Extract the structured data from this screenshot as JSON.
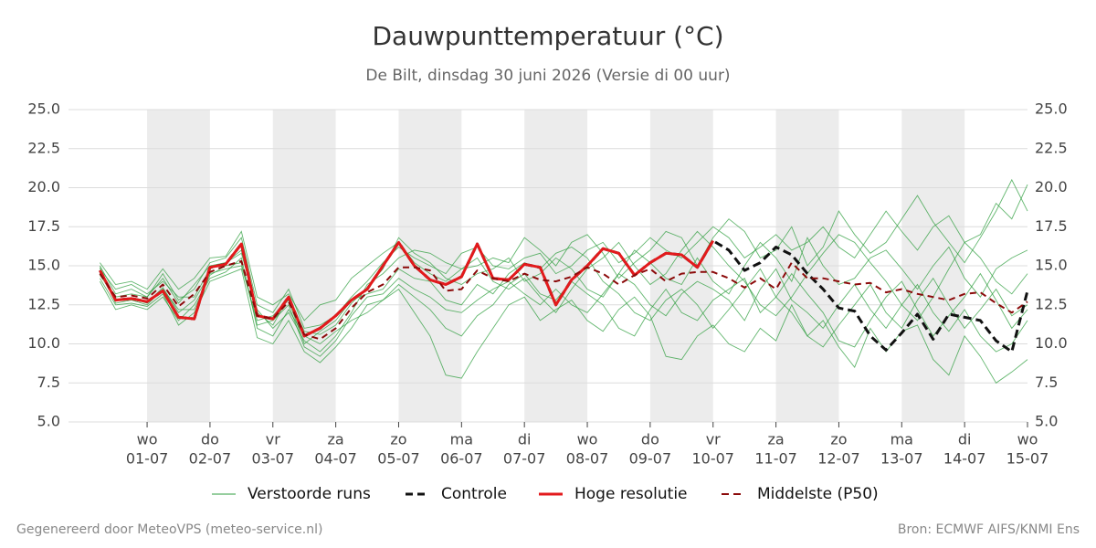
{
  "chart_data": {
    "type": "line",
    "title": "Dauwpunttemperatuur (°C)",
    "subtitle": "De Bilt, dinsdag 30 juni 2026 (Versie di 00 uur)",
    "x": [
      6,
      12,
      18,
      24,
      30,
      36,
      42,
      48,
      54,
      60,
      66,
      72,
      78,
      84,
      90,
      96,
      102,
      108,
      114,
      120,
      126,
      132,
      138,
      144,
      150,
      156,
      162,
      168,
      174,
      180,
      186,
      192,
      198,
      204,
      210,
      216,
      222,
      228,
      234,
      240,
      246,
      252,
      258,
      264,
      270,
      276,
      282,
      288,
      294,
      300,
      306,
      312,
      318,
      324,
      330,
      336,
      342,
      348,
      354,
      360
    ],
    "xlim": [
      -6,
      360
    ],
    "xticks": [
      {
        "value": 24,
        "label": "01-07",
        "day": "wo"
      },
      {
        "value": 48,
        "label": "02-07",
        "day": "do"
      },
      {
        "value": 72,
        "label": "03-07",
        "day": "vr"
      },
      {
        "value": 96,
        "label": "04-07",
        "day": "za"
      },
      {
        "value": 120,
        "label": "05-07",
        "day": "zo"
      },
      {
        "value": 144,
        "label": "06-07",
        "day": "ma"
      },
      {
        "value": 168,
        "label": "07-07",
        "day": "di"
      },
      {
        "value": 192,
        "label": "08-07",
        "day": "wo"
      },
      {
        "value": 216,
        "label": "09-07",
        "day": "do"
      },
      {
        "value": 240,
        "label": "10-07",
        "day": "vr"
      },
      {
        "value": 264,
        "label": "11-07",
        "day": "za"
      },
      {
        "value": 288,
        "label": "12-07",
        "day": "zo"
      },
      {
        "value": 312,
        "label": "13-07",
        "day": "ma"
      },
      {
        "value": 336,
        "label": "14-07",
        "day": "di"
      },
      {
        "value": 360,
        "label": "15-07",
        "day": "wo"
      }
    ],
    "ylim": [
      5,
      25
    ],
    "yticks": [
      {
        "value": 5,
        "label": "5.0"
      },
      {
        "value": 7.5,
        "label": "7.5"
      },
      {
        "value": 10,
        "label": "10.0"
      },
      {
        "value": 12.5,
        "label": "12.5"
      },
      {
        "value": 15,
        "label": "15.0"
      },
      {
        "value": 17.5,
        "label": "17.5"
      },
      {
        "value": 20,
        "label": "20.0"
      },
      {
        "value": 22.5,
        "label": "22.5"
      },
      {
        "value": 25,
        "label": "25.0"
      }
    ],
    "grid": true,
    "ensemble": {
      "name": "Verstoorde runs",
      "color": "#2e9e3e",
      "members": [
        [
          15.0,
          13.2,
          13.5,
          13.0,
          14.5,
          12.8,
          13.5,
          15.2,
          15.5,
          16.8,
          12.5,
          12.0,
          13.5,
          11.0,
          11.2,
          11.8,
          13.0,
          14.0,
          15.2,
          16.2,
          15.5,
          15.0,
          14.5,
          15.8,
          16.2,
          15.0,
          14.8,
          15.5,
          15.8,
          14.5,
          15.0,
          16.0,
          16.5,
          15.2,
          15.8,
          16.8,
          16.0,
          15.5,
          16.5,
          17.5,
          16.8,
          15.5,
          16.2,
          17.0,
          16.0,
          16.5,
          17.5,
          16.2,
          15.5,
          17.0,
          18.5,
          17.2,
          16.0,
          17.5,
          18.2,
          16.5,
          17.0,
          19.0,
          18.0,
          20.2
        ],
        [
          14.2,
          12.5,
          12.6,
          12.4,
          13.2,
          11.2,
          12.0,
          14.0,
          14.4,
          14.8,
          10.4,
          10.0,
          11.5,
          9.5,
          8.8,
          9.8,
          11.0,
          12.5,
          12.8,
          13.5,
          12.0,
          10.5,
          8.0,
          7.8,
          9.5,
          11.0,
          12.5,
          13.0,
          11.5,
          12.2,
          12.8,
          11.5,
          10.8,
          12.2,
          13.0,
          11.8,
          9.2,
          9.0,
          10.5,
          11.2,
          10.0,
          9.5,
          11.0,
          10.2,
          12.5,
          10.5,
          11.5,
          9.8,
          8.5,
          11.0,
          9.5,
          10.8,
          11.2,
          9.0,
          8.0,
          10.5,
          9.2,
          7.5,
          8.2,
          9.0
        ],
        [
          14.8,
          13.5,
          13.8,
          13.2,
          14.0,
          13.0,
          13.0,
          14.8,
          15.2,
          15.8,
          12.2,
          11.0,
          12.0,
          10.2,
          9.5,
          10.5,
          12.0,
          13.8,
          14.5,
          15.5,
          16.0,
          15.8,
          15.2,
          14.8,
          15.5,
          14.0,
          13.5,
          14.2,
          13.0,
          12.0,
          13.5,
          14.8,
          15.5,
          16.5,
          15.0,
          13.8,
          14.5,
          16.0,
          17.2,
          16.2,
          15.0,
          14.0,
          12.5,
          11.8,
          13.0,
          14.5,
          15.8,
          17.0,
          16.5,
          15.2,
          14.0,
          12.5,
          11.5,
          13.0,
          14.8,
          16.5,
          15.5,
          14.0,
          13.2,
          14.5
        ],
        [
          14.6,
          12.8,
          12.9,
          12.6,
          13.6,
          12.0,
          12.8,
          14.5,
          14.8,
          15.0,
          11.5,
          11.8,
          12.8,
          10.0,
          10.8,
          11.5,
          12.8,
          13.2,
          13.5,
          14.8,
          14.2,
          14.0,
          12.8,
          12.5,
          13.8,
          13.2,
          14.5,
          15.2,
          14.8,
          15.8,
          16.2,
          15.5,
          14.0,
          13.2,
          12.0,
          11.5,
          12.8,
          13.5,
          12.5,
          11.0,
          12.2,
          13.5,
          14.8,
          13.0,
          12.0,
          10.5,
          9.8,
          11.2,
          12.5,
          13.8,
          12.0,
          11.0,
          12.8,
          14.2,
          12.5,
          11.0,
          12.2,
          13.5,
          11.8,
          12.5
        ],
        [
          15.2,
          13.8,
          14.0,
          13.5,
          14.8,
          13.5,
          14.2,
          15.5,
          15.6,
          17.2,
          13.0,
          12.5,
          13.2,
          11.5,
          12.5,
          12.8,
          14.2,
          15.0,
          15.8,
          16.5,
          15.2,
          14.5,
          14.0,
          14.8,
          15.0,
          15.5,
          15.2,
          16.8,
          16.0,
          15.0,
          16.5,
          17.0,
          15.8,
          14.2,
          15.2,
          16.0,
          17.2,
          16.8,
          15.0,
          16.8,
          18.0,
          17.2,
          15.5,
          16.0,
          17.5,
          15.0,
          16.2,
          18.5,
          17.0,
          15.8,
          16.5,
          18.0,
          19.5,
          17.8,
          16.5,
          15.2,
          16.8,
          18.5,
          20.5,
          18.5
        ],
        [
          14.0,
          12.2,
          12.5,
          12.2,
          13.0,
          11.5,
          12.5,
          14.2,
          14.6,
          15.5,
          11.0,
          10.5,
          12.2,
          10.5,
          10.0,
          10.8,
          11.5,
          12.0,
          12.8,
          13.8,
          13.0,
          12.2,
          11.0,
          10.5,
          11.8,
          12.5,
          13.8,
          14.5,
          13.2,
          12.8,
          14.0,
          13.2,
          12.5,
          11.0,
          10.5,
          12.2,
          13.5,
          12.0,
          11.5,
          12.8,
          13.5,
          14.2,
          12.0,
          13.0,
          14.5,
          13.2,
          12.0,
          10.2,
          9.8,
          11.5,
          13.0,
          14.0,
          12.2,
          10.5,
          11.8,
          13.0,
          14.5,
          12.8,
          11.0,
          12.2
        ],
        [
          14.4,
          13.0,
          13.2,
          13.0,
          14.2,
          12.6,
          13.8,
          15.0,
          15.2,
          16.0,
          12.0,
          11.2,
          13.0,
          10.8,
          10.6,
          11.2,
          12.6,
          13.6,
          14.8,
          16.8,
          15.8,
          15.2,
          14.2,
          13.8,
          14.5,
          14.8,
          15.5,
          14.0,
          14.5,
          15.5,
          14.8,
          13.5,
          13.0,
          14.5,
          16.0,
          15.2,
          14.2,
          13.8,
          15.5,
          14.0,
          13.2,
          15.0,
          16.5,
          15.5,
          14.0,
          16.8,
          15.0,
          13.8,
          14.2,
          15.5,
          16.0,
          14.8,
          13.5,
          15.0,
          16.2,
          14.2,
          13.0,
          14.8,
          15.5,
          16.0
        ],
        [
          14.9,
          12.6,
          12.8,
          12.5,
          13.5,
          12.2,
          12.2,
          14.4,
          15.0,
          15.2,
          11.2,
          11.5,
          12.5,
          9.8,
          9.2,
          10.2,
          11.8,
          13.0,
          13.2,
          14.2,
          13.5,
          13.0,
          12.2,
          12.0,
          12.8,
          13.5,
          14.0,
          13.2,
          12.5,
          13.5,
          12.5,
          12.0,
          13.2,
          14.5,
          13.8,
          12.5,
          11.8,
          13.2,
          14.0,
          13.5,
          12.8,
          11.5,
          13.5,
          14.8,
          12.8,
          12.0,
          11.0,
          12.5,
          13.8,
          12.2,
          11.0,
          12.5,
          13.8,
          12.0,
          10.8,
          12.2,
          10.5,
          9.5,
          10.0,
          11.5
        ]
      ]
    },
    "series": [
      {
        "name": "Controle",
        "color": "#111111",
        "style": "dashed",
        "values": [
          14.7,
          12.8,
          12.9,
          12.7,
          13.4,
          11.7,
          11.6,
          14.9,
          15.1,
          16.4,
          11.8,
          11.6,
          13.0,
          10.5,
          11.0,
          11.8,
          12.8,
          13.5,
          15.0,
          16.5,
          15.0,
          14.1,
          13.8,
          14.3,
          16.4,
          14.2,
          14.1,
          15.1,
          14.9,
          12.5,
          14.1,
          15.0,
          16.1,
          15.8,
          14.4,
          15.2,
          15.8,
          15.7,
          14.9,
          16.6,
          16.0,
          14.7,
          15.2,
          16.2,
          15.7,
          14.5,
          13.5,
          12.3,
          12.1,
          10.5,
          9.6,
          10.7,
          11.9,
          10.3,
          11.9,
          11.7,
          11.5,
          10.2,
          9.5,
          13.4
        ]
      },
      {
        "name": "Hoge resolutie",
        "color": "#e31a1c",
        "style": "solid",
        "values": [
          14.7,
          12.8,
          12.9,
          12.7,
          13.4,
          11.7,
          11.6,
          14.9,
          15.1,
          16.4,
          11.8,
          11.6,
          13.0,
          10.5,
          11.0,
          11.8,
          12.8,
          13.5,
          15.0,
          16.5,
          15.0,
          14.1,
          13.8,
          14.3,
          16.4,
          14.2,
          14.1,
          15.1,
          14.9,
          12.5,
          14.1,
          15.0,
          16.1,
          15.8,
          14.4,
          15.2,
          15.8,
          15.7,
          14.9,
          16.6,
          null,
          null,
          null,
          null,
          null,
          null,
          null,
          null,
          null,
          null,
          null,
          null,
          null,
          null,
          null,
          null,
          null,
          null,
          null,
          null
        ]
      },
      {
        "name": "Middelste (P50)",
        "color": "#8b0a0a",
        "style": "dashed",
        "values": [
          14.5,
          13.0,
          13.1,
          12.9,
          13.8,
          12.4,
          13.2,
          14.6,
          15.0,
          15.3,
          11.8,
          11.6,
          12.7,
          10.6,
          10.3,
          11.0,
          12.3,
          13.3,
          13.8,
          14.9,
          14.9,
          14.7,
          13.4,
          13.5,
          14.7,
          14.2,
          14.0,
          14.5,
          14.1,
          14.0,
          14.3,
          14.9,
          14.5,
          13.8,
          14.4,
          14.8,
          14.0,
          14.5,
          14.6,
          14.6,
          14.2,
          13.6,
          14.2,
          13.5,
          15.2,
          14.2,
          14.2,
          14.0,
          13.8,
          13.9,
          13.3,
          13.5,
          13.2,
          13.0,
          12.8,
          13.2,
          13.3,
          12.6,
          12.0,
          12.7
        ]
      }
    ]
  },
  "footer": {
    "left": "Gegenereerd door MeteoVPS (meteo-service.nl)",
    "right": "Bron: ECMWF AIFS/KNMI Ens"
  }
}
